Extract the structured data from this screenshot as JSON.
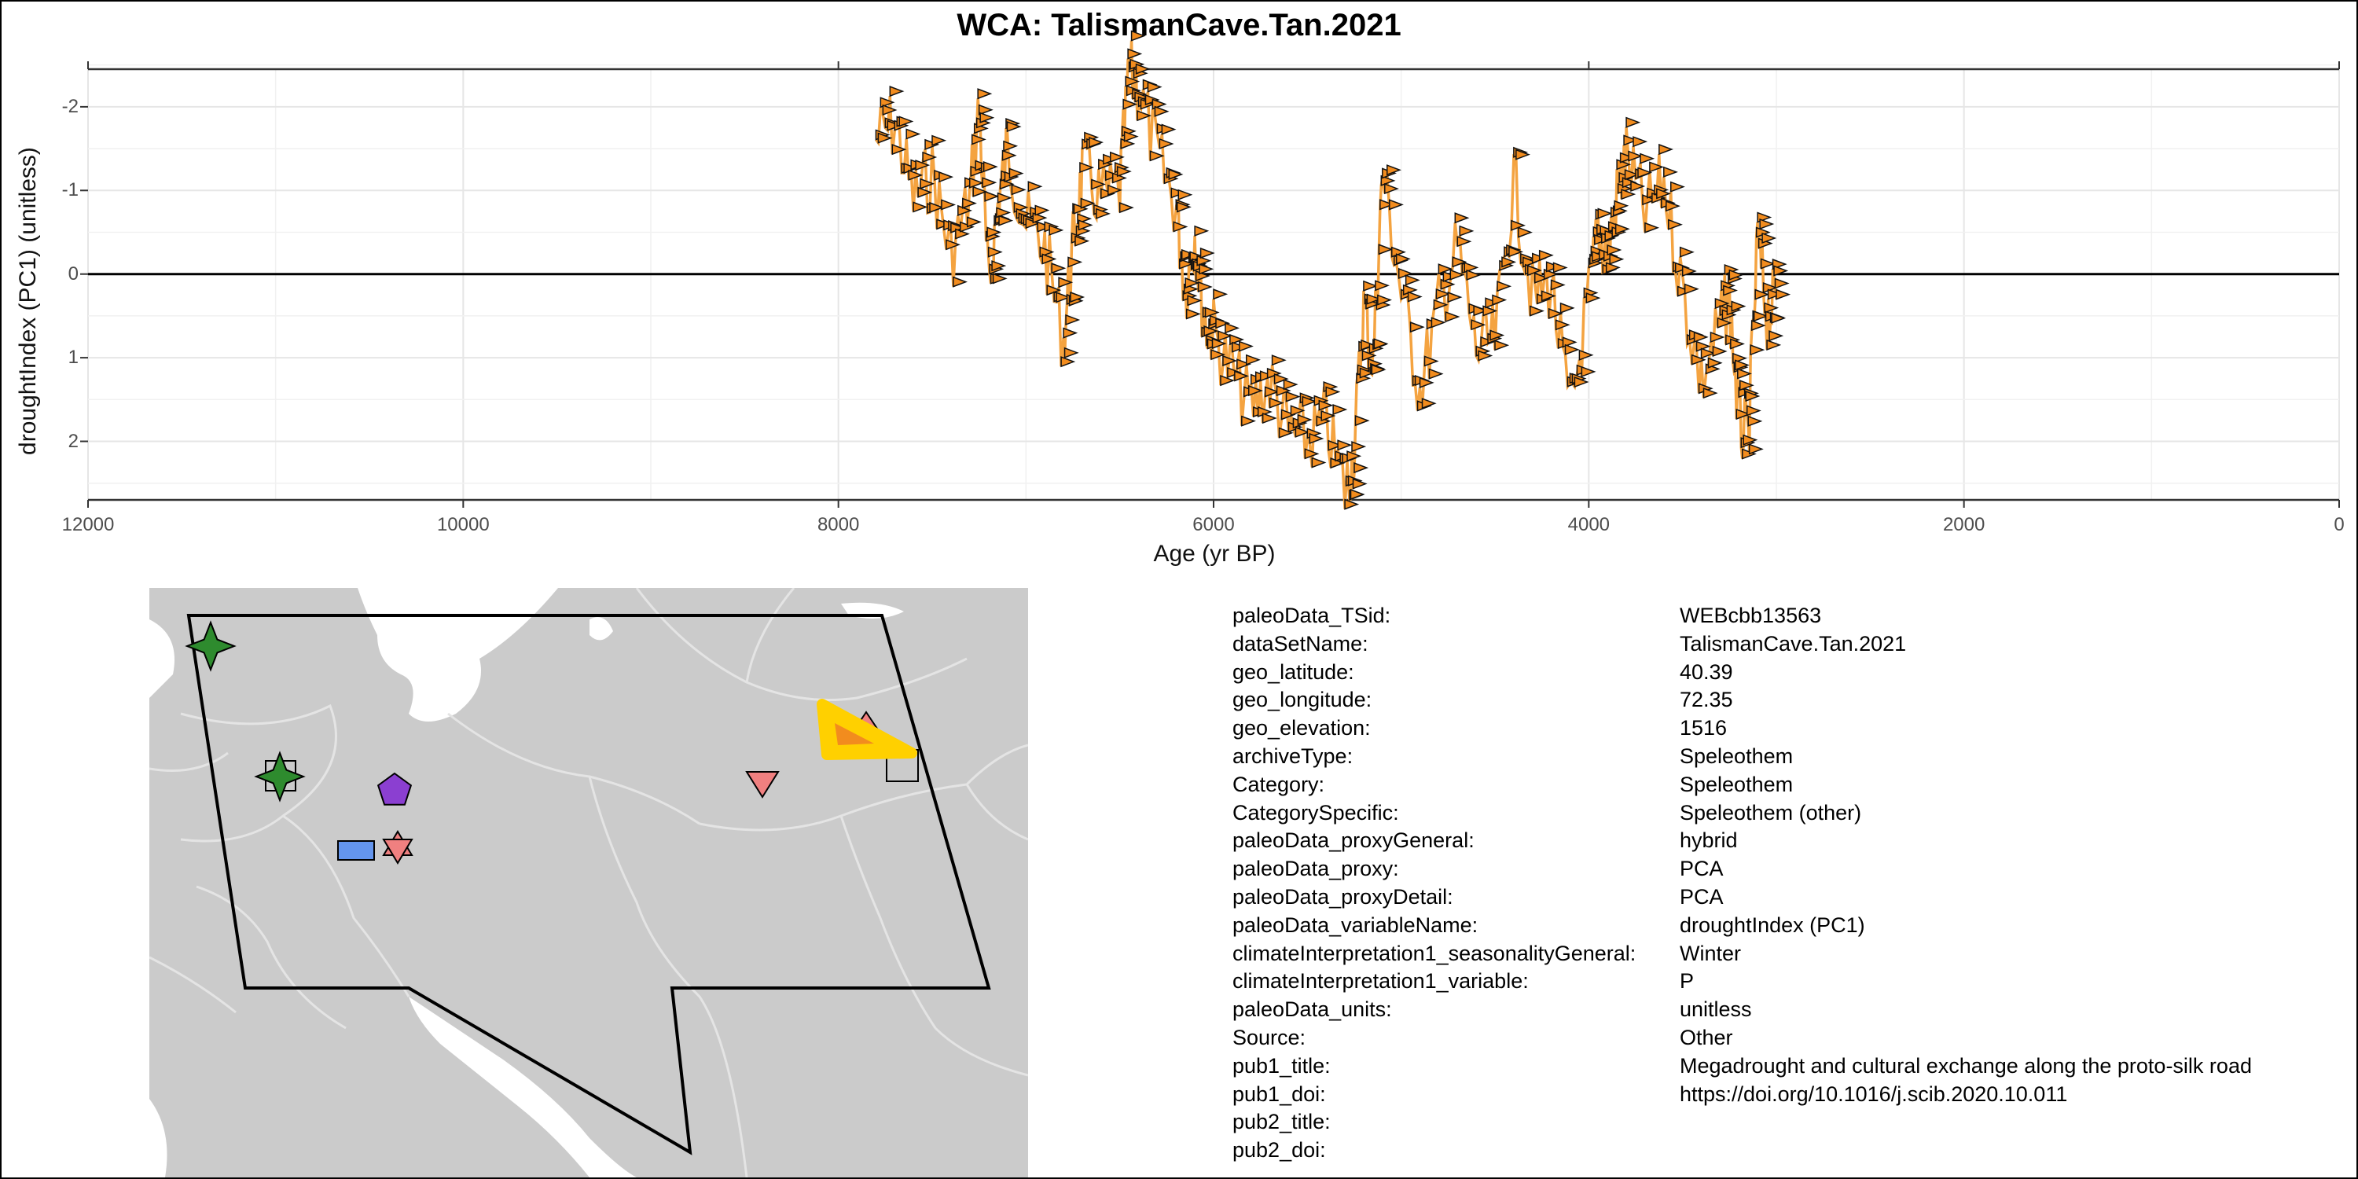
{
  "chart_data": {
    "type": "line",
    "title": "WCA: TalismanCave.Tan.2021",
    "xlabel": "Age (yr BP)",
    "ylabel": "droughtIndex (PC1) (unitless)",
    "xlim": [
      12000,
      0
    ],
    "ylim": [
      2.7,
      -2.45
    ],
    "y_reversed": true,
    "x_reversed": true,
    "x_ticks": [
      12000,
      10000,
      8000,
      6000,
      4000,
      2000,
      0
    ],
    "y_ticks": [
      -2,
      -1,
      0,
      1,
      2
    ],
    "x_tick_labels": [
      "12000",
      "10000",
      "8000",
      "6000",
      "4000",
      "2000",
      "0"
    ],
    "y_tick_labels": [
      "-2",
      "-1",
      "0",
      "1",
      "2"
    ],
    "zero_line": 0,
    "grid": true,
    "line_color": "#f4a340",
    "marker_color": "#f28c1e",
    "series": [
      {
        "name": "",
        "x": [
          7800,
          7700,
          7600,
          7500,
          7400,
          7300,
          7250,
          7200,
          7150,
          7100,
          7000,
          6900,
          6800,
          6750,
          6700,
          6600,
          6500,
          6450,
          6400,
          6300,
          6200,
          6150,
          6100,
          6050,
          6000,
          5900,
          5800,
          5700,
          5600,
          5500,
          5400,
          5300,
          5250,
          5200,
          5150,
          5100,
          5000,
          4900,
          4800,
          4700,
          4600,
          4500,
          4400,
          4300,
          4200,
          4100,
          4000,
          3950,
          3900,
          3850,
          3800,
          3700,
          3600,
          3500,
          3400,
          3300,
          3250,
          3200,
          3150,
          3100,
          3050,
          3000
        ],
        "y": [
          -1.6,
          -1.8,
          -0.9,
          -1.2,
          -0.2,
          -0.9,
          -2.0,
          0.2,
          -0.8,
          -1.5,
          -0.6,
          -0.3,
          0.8,
          -0.3,
          -1.2,
          -0.9,
          -1.0,
          -2.4,
          -2.2,
          -1.4,
          -0.8,
          0.2,
          -0.5,
          0.6,
          0.7,
          1.2,
          1.6,
          1.3,
          1.9,
          2.0,
          1.8,
          2.6,
          2.1,
          0.4,
          1.1,
          -1.2,
          0.2,
          1.4,
          0.4,
          -0.3,
          0.9,
          0.8,
          -1.1,
          0.3,
          0.1,
          1.7,
          0.3,
          -0.5,
          -0.2,
          -0.9,
          -1.4,
          -0.7,
          -1.1,
          0.2,
          1.3,
          0.6,
          0.3,
          1.8,
          2.0,
          -0.4,
          0.5,
          0.3
        ]
      }
    ]
  },
  "map": {
    "background_color": "#cbcbcb",
    "land_color": "#cbcbcb",
    "water_color": "#ffffff",
    "region_outline_color": "#000000",
    "target_marker_color": "#ffd000",
    "target_inner_color": "#f28c1e",
    "markers": [
      {
        "shape": "star4",
        "color": "#2e8b2e"
      },
      {
        "shape": "star4",
        "color": "#2e8b2e"
      },
      {
        "shape": "square-open",
        "color": "#cbcbcb"
      },
      {
        "shape": "pentagon",
        "color": "#8b3fd1"
      },
      {
        "shape": "rectangle",
        "color": "#6495ed"
      },
      {
        "shape": "hexagram",
        "color": "#f08080"
      },
      {
        "shape": "triangle-down",
        "color": "#f08080"
      },
      {
        "shape": "square-open",
        "color": "#cbcbcb"
      },
      {
        "shape": "triangle-up",
        "color": "#ffd000"
      }
    ]
  },
  "info": [
    {
      "key": "paleoData_TSid:",
      "value": "WEBcbb13563"
    },
    {
      "key": "dataSetName:",
      "value": "TalismanCave.Tan.2021"
    },
    {
      "key": "geo_latitude:",
      "value": "40.39"
    },
    {
      "key": "geo_longitude:",
      "value": "72.35"
    },
    {
      "key": "geo_elevation:",
      "value": "1516"
    },
    {
      "key": "archiveType:",
      "value": "Speleothem"
    },
    {
      "key": "Category:",
      "value": "Speleothem"
    },
    {
      "key": "CategorySpecific:",
      "value": "Speleothem (other)"
    },
    {
      "key": "paleoData_proxyGeneral:",
      "value": "hybrid"
    },
    {
      "key": "paleoData_proxy:",
      "value": "PCA"
    },
    {
      "key": "paleoData_proxyDetail:",
      "value": "PCA"
    },
    {
      "key": "paleoData_variableName:",
      "value": "droughtIndex (PC1)"
    },
    {
      "key": "climateInterpretation1_seasonalityGeneral:",
      "value": "Winter"
    },
    {
      "key": "climateInterpretation1_variable:",
      "value": "P"
    },
    {
      "key": "paleoData_units:",
      "value": "unitless"
    },
    {
      "key": "Source:",
      "value": "Other"
    },
    {
      "key": "pub1_title:",
      "value": "Megadrought and cultural exchange along the proto-silk road"
    },
    {
      "key": "pub1_doi:",
      "value": "https://doi.org/10.1016/j.scib.2020.10.011"
    },
    {
      "key": "pub2_title:",
      "value": ""
    },
    {
      "key": "pub2_doi:",
      "value": ""
    }
  ]
}
